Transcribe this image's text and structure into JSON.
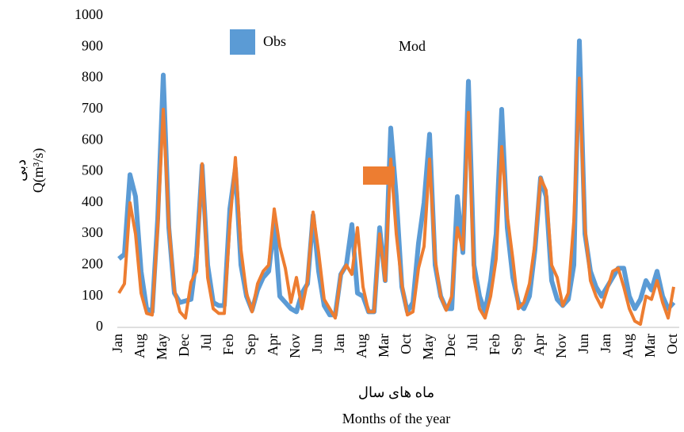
{
  "chart_data": {
    "type": "line",
    "y_label": [
      "دبی",
      "Q(m³/s)"
    ],
    "x_label": [
      "ماه های سال",
      "Months of the year"
    ],
    "categories": [
      "Jan",
      null,
      null,
      null,
      "Aug",
      null,
      null,
      null,
      "May",
      null,
      null,
      null,
      "Dec",
      null,
      null,
      null,
      "Jul",
      null,
      null,
      null,
      "Feb",
      null,
      null,
      null,
      "Sep",
      null,
      null,
      null,
      "Apr",
      null,
      null,
      null,
      "Nov",
      null,
      null,
      null,
      "Jun",
      null,
      null,
      null,
      "Jan",
      null,
      null,
      null,
      "Aug",
      null,
      null,
      null,
      "Mar",
      null,
      null,
      null,
      "Oct",
      null,
      null,
      null,
      "May",
      null,
      null,
      null,
      "Dec",
      null,
      null,
      null,
      "Jul",
      null,
      null,
      null,
      "Feb",
      null,
      null,
      null,
      "Sep",
      null,
      null,
      null,
      "Apr",
      null,
      null,
      null,
      "Nov",
      null,
      null,
      null,
      "Jun",
      null,
      null,
      null,
      "Jan",
      null,
      null,
      null,
      "Aug",
      null,
      null,
      null,
      "Mar",
      null,
      null,
      null,
      "Oct"
    ],
    "series": [
      {
        "name": "Obs",
        "color": "#5b9bd5",
        "values": [
          220,
          235,
          490,
          420,
          180,
          60,
          50,
          350,
          810,
          320,
          110,
          80,
          85,
          90,
          230,
          520,
          200,
          80,
          70,
          70,
          380,
          510,
          200,
          100,
          55,
          120,
          160,
          180,
          330,
          100,
          80,
          60,
          50,
          110,
          140,
          360,
          180,
          70,
          40,
          40,
          170,
          200,
          330,
          110,
          100,
          50,
          50,
          320,
          150,
          640,
          420,
          130,
          50,
          80,
          270,
          400,
          620,
          200,
          100,
          60,
          60,
          420,
          240,
          790,
          200,
          100,
          50,
          150,
          300,
          700,
          320,
          160,
          80,
          60,
          100,
          250,
          480,
          420,
          150,
          90,
          70,
          90,
          200,
          920,
          300,
          180,
          130,
          100,
          130,
          160,
          190,
          190,
          100,
          60,
          90,
          150,
          120,
          180,
          100,
          60,
          80
        ]
      },
      {
        "name": "Mod",
        "color": "#ed7d31",
        "values": [
          110,
          140,
          400,
          300,
          110,
          45,
          40,
          320,
          700,
          330,
          120,
          50,
          30,
          145,
          180,
          525,
          160,
          60,
          45,
          45,
          330,
          545,
          250,
          110,
          50,
          140,
          180,
          200,
          380,
          260,
          190,
          80,
          160,
          60,
          150,
          370,
          240,
          90,
          60,
          30,
          170,
          200,
          170,
          320,
          130,
          50,
          50,
          300,
          150,
          540,
          300,
          140,
          40,
          50,
          190,
          260,
          540,
          220,
          100,
          55,
          100,
          320,
          250,
          690,
          160,
          60,
          30,
          100,
          220,
          580,
          360,
          220,
          60,
          80,
          140,
          270,
          480,
          440,
          200,
          160,
          70,
          110,
          340,
          800,
          320,
          150,
          100,
          65,
          120,
          180,
          190,
          130,
          60,
          20,
          10,
          100,
          90,
          150,
          80,
          30,
          130
        ]
      }
    ],
    "ylim": [
      0,
      1000
    ],
    "yticks": [
      0,
      100,
      200,
      300,
      400,
      500,
      600,
      700,
      800,
      900,
      1000
    ],
    "grid": false
  }
}
